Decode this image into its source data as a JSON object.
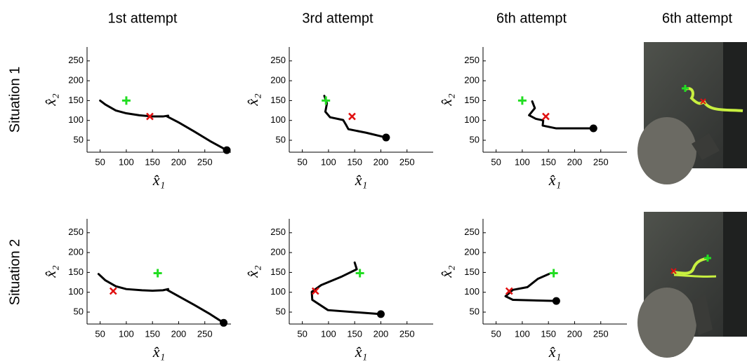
{
  "column_titles": [
    "1st attempt",
    "3rd attempt",
    "6th attempt",
    "6th attempt"
  ],
  "row_labels": [
    "Situation 1",
    "Situation 2"
  ],
  "chart_data": [
    {
      "type": "line",
      "xlabel": "x̂₁",
      "ylabel": "x̂₂",
      "xlim": [
        25,
        300
      ],
      "ylim": [
        20,
        285
      ],
      "xticks": [
        50,
        100,
        150,
        200,
        250
      ],
      "yticks": [
        50,
        100,
        150,
        200,
        250
      ],
      "series": [
        {
          "type": "line",
          "color": "#000000",
          "x": [
            50,
            60,
            80,
            100,
            125,
            150,
            170,
            180,
            178,
            200,
            230,
            260,
            292
          ],
          "values": [
            150,
            140,
            125,
            118,
            113,
            110,
            110,
            112,
            110,
            95,
            72,
            48,
            25
          ]
        },
        {
          "type": "scatter",
          "marker": "circle",
          "color": "#000000",
          "x": [
            292
          ],
          "values": [
            25
          ]
        },
        {
          "type": "scatter",
          "marker": "plus",
          "color": "#22dd22",
          "x": [
            100
          ],
          "values": [
            150
          ]
        },
        {
          "type": "scatter",
          "marker": "cross",
          "color": "#e01010",
          "x": [
            145
          ],
          "values": [
            110
          ]
        }
      ]
    },
    {
      "type": "line",
      "xlabel": "x̂₁",
      "ylabel": "x̂₂",
      "xlim": [
        25,
        300
      ],
      "ylim": [
        20,
        285
      ],
      "xticks": [
        50,
        100,
        150,
        200,
        250
      ],
      "yticks": [
        50,
        100,
        150,
        200,
        250
      ],
      "series": [
        {
          "type": "line",
          "color": "#000000",
          "x": [
            92,
            97,
            94,
            103,
            128,
            133,
            138,
            172,
            210
          ],
          "values": [
            162,
            143,
            122,
            108,
            101,
            90,
            78,
            69,
            57
          ]
        },
        {
          "type": "scatter",
          "marker": "circle",
          "color": "#000000",
          "x": [
            210
          ],
          "values": [
            57
          ]
        },
        {
          "type": "scatter",
          "marker": "plus",
          "color": "#22dd22",
          "x": [
            95
          ],
          "values": [
            150
          ]
        },
        {
          "type": "scatter",
          "marker": "cross",
          "color": "#e01010",
          "x": [
            145
          ],
          "values": [
            110
          ]
        }
      ]
    },
    {
      "type": "line",
      "xlabel": "x̂₁",
      "ylabel": "x̂₂",
      "xlim": [
        25,
        300
      ],
      "ylim": [
        20,
        285
      ],
      "xticks": [
        50,
        100,
        150,
        200,
        250
      ],
      "yticks": [
        50,
        100,
        150,
        200,
        250
      ],
      "series": [
        {
          "type": "line",
          "color": "#000000",
          "x": [
            119,
            124,
            113,
            126,
            140,
            139,
            165,
            236
          ],
          "values": [
            148,
            131,
            113,
            104,
            100,
            87,
            80,
            80
          ]
        },
        {
          "type": "scatter",
          "marker": "circle",
          "color": "#000000",
          "x": [
            236
          ],
          "values": [
            80
          ]
        },
        {
          "type": "scatter",
          "marker": "plus",
          "color": "#22dd22",
          "x": [
            100
          ],
          "values": [
            150
          ]
        },
        {
          "type": "scatter",
          "marker": "cross",
          "color": "#e01010",
          "x": [
            145
          ],
          "values": [
            110
          ]
        }
      ]
    },
    {
      "type": "line",
      "xlabel": "x̂₁",
      "ylabel": "x̂₂",
      "xlim": [
        25,
        300
      ],
      "ylim": [
        20,
        285
      ],
      "xticks": [
        50,
        100,
        150,
        200,
        250
      ],
      "yticks": [
        50,
        100,
        150,
        200,
        250
      ],
      "series": [
        {
          "type": "line",
          "color": "#000000",
          "x": [
            47,
            60,
            80,
            100,
            130,
            150,
            170,
            180,
            178,
            200,
            230,
            260,
            286
          ],
          "values": [
            146,
            130,
            115,
            108,
            105,
            104,
            105,
            108,
            106,
            90,
            68,
            45,
            23
          ]
        },
        {
          "type": "scatter",
          "marker": "circle",
          "color": "#000000",
          "x": [
            286
          ],
          "values": [
            23
          ]
        },
        {
          "type": "scatter",
          "marker": "plus",
          "color": "#22dd22",
          "x": [
            160
          ],
          "values": [
            148
          ]
        },
        {
          "type": "scatter",
          "marker": "cross",
          "color": "#e01010",
          "x": [
            75
          ],
          "values": [
            103
          ]
        }
      ]
    },
    {
      "type": "line",
      "xlabel": "x̂₁",
      "ylabel": "x̂₂",
      "xlim": [
        25,
        300
      ],
      "ylim": [
        20,
        285
      ],
      "xticks": [
        50,
        100,
        150,
        200,
        250
      ],
      "yticks": [
        50,
        100,
        150,
        200,
        250
      ],
      "series": [
        {
          "type": "line",
          "color": "#000000",
          "x": [
            150,
            154,
            126,
            86,
            68,
            69,
            99,
            200
          ],
          "values": [
            175,
            158,
            140,
            118,
            101,
            81,
            55,
            45
          ]
        },
        {
          "type": "scatter",
          "marker": "circle",
          "color": "#000000",
          "x": [
            200
          ],
          "values": [
            45
          ]
        },
        {
          "type": "scatter",
          "marker": "plus",
          "color": "#22dd22",
          "x": [
            160
          ],
          "values": [
            148
          ]
        },
        {
          "type": "scatter",
          "marker": "cross",
          "color": "#e01010",
          "x": [
            75
          ],
          "values": [
            103
          ]
        }
      ]
    },
    {
      "type": "line",
      "xlabel": "x̂₁",
      "ylabel": "x̂₂",
      "xlim": [
        25,
        300
      ],
      "ylim": [
        20,
        285
      ],
      "xticks": [
        50,
        100,
        150,
        200,
        250
      ],
      "yticks": [
        50,
        100,
        150,
        200,
        250
      ],
      "series": [
        {
          "type": "line",
          "color": "#000000",
          "x": [
            151,
            130,
            110,
            82,
            68,
            82,
            165
          ],
          "values": [
            146,
            134,
            113,
            106,
            90,
            81,
            78
          ]
        },
        {
          "type": "scatter",
          "marker": "circle",
          "color": "#000000",
          "x": [
            165
          ],
          "values": [
            78
          ]
        },
        {
          "type": "scatter",
          "marker": "plus",
          "color": "#22dd22",
          "x": [
            160
          ],
          "values": [
            148
          ]
        },
        {
          "type": "scatter",
          "marker": "cross",
          "color": "#e01010",
          "x": [
            75
          ],
          "values": [
            103
          ]
        }
      ]
    }
  ]
}
